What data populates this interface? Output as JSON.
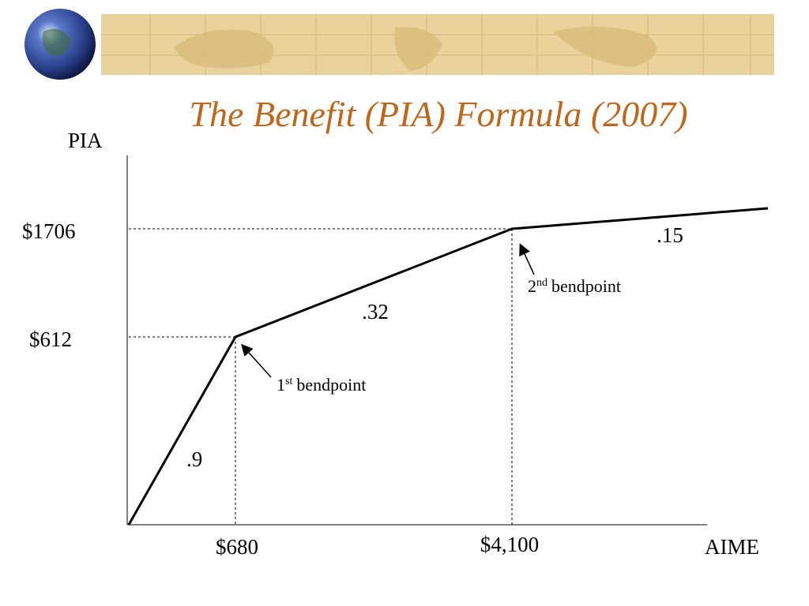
{
  "title": "The Benefit (PIA) Formula (2007)",
  "y_axis_label": "PIA",
  "x_axis_label": "AIME",
  "y_labels": [
    "$1706",
    "$612"
  ],
  "x_labels": [
    "$680",
    "$4,100"
  ],
  "slope_labels": [
    ".9",
    ".32",
    ".15"
  ],
  "annotations": [
    {
      "number": "1",
      "suffix": "st",
      "text": "bendpoint"
    },
    {
      "number": "2",
      "suffix": "nd",
      "text": "bendpoint"
    }
  ]
}
